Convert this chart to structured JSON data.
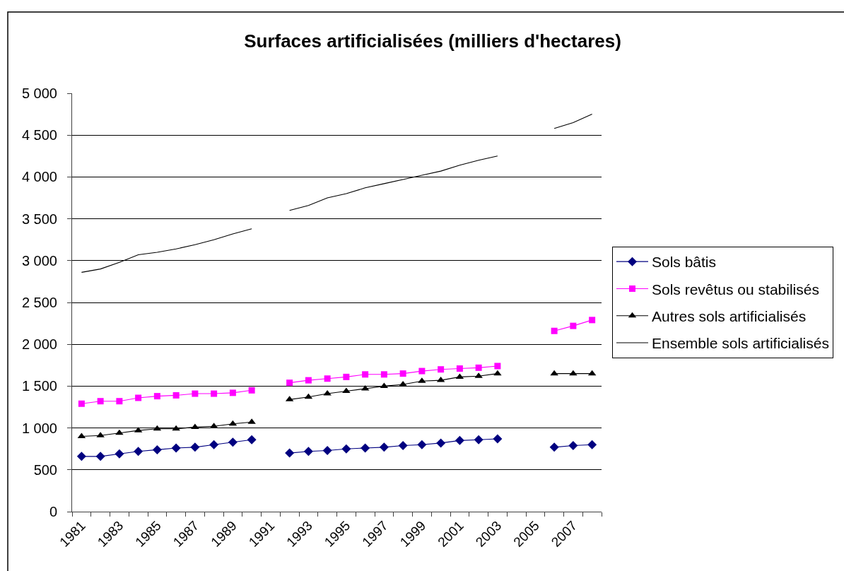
{
  "chart_data": {
    "type": "line",
    "title": "Surfaces artificialisées (milliers d'hectares)",
    "categories": [
      "1981",
      null,
      "1983",
      null,
      "1985",
      null,
      "1987",
      null,
      "1989",
      null,
      "1991",
      null,
      "1993",
      null,
      "1995",
      null,
      "1997",
      null,
      "1999",
      null,
      "2001",
      null,
      "2003",
      null,
      "2005",
      null,
      "2007",
      null
    ],
    "series": [
      {
        "name": "Sols bâtis",
        "color": "#000080",
        "marker": "diamond",
        "values": [
          660,
          660,
          690,
          720,
          740,
          760,
          770,
          800,
          830,
          860,
          null,
          700,
          720,
          730,
          750,
          760,
          770,
          790,
          800,
          820,
          850,
          860,
          870,
          null,
          null,
          770,
          790,
          800
        ]
      },
      {
        "name": "Sols revêtus ou stabilisés",
        "color": "#ff00ff",
        "marker": "square",
        "values": [
          1290,
          1320,
          1320,
          1360,
          1380,
          1390,
          1410,
          1410,
          1420,
          1450,
          null,
          1540,
          1570,
          1590,
          1610,
          1640,
          1640,
          1650,
          1680,
          1700,
          1710,
          1720,
          1740,
          null,
          null,
          2160,
          2220,
          2290
        ]
      },
      {
        "name": "Autres sols artificialisés",
        "color": "#000000",
        "marker": "triangle",
        "values": [
          900,
          910,
          940,
          970,
          990,
          990,
          1010,
          1020,
          1050,
          1070,
          null,
          1340,
          1370,
          1410,
          1440,
          1470,
          1500,
          1520,
          1560,
          1570,
          1610,
          1620,
          1650,
          null,
          null,
          1650,
          1650,
          1650
        ]
      },
      {
        "name": "Ensemble sols artificialisés",
        "color": "#000000",
        "marker": "none",
        "values": [
          2860,
          2900,
          2980,
          3070,
          3100,
          3140,
          3190,
          3250,
          3320,
          3380,
          null,
          3600,
          3660,
          3750,
          3800,
          3870,
          3920,
          3970,
          4020,
          4070,
          4140,
          4200,
          4250,
          null,
          null,
          4580,
          4650,
          4750
        ]
      }
    ],
    "ylim": [
      0,
      5000
    ],
    "yticks": [
      0,
      500,
      {
        "value": 1000,
        "label": "1 000"
      },
      {
        "value": 1500,
        "label": "1 500"
      },
      {
        "value": 2000,
        "label": "2 000"
      },
      {
        "value": 2500,
        "label": "2 500"
      },
      {
        "value": 3000,
        "label": "3 000"
      },
      {
        "value": 3500,
        "label": "3 500"
      },
      {
        "value": 4000,
        "label": "4 000"
      },
      {
        "value": 4500,
        "label": "4 500"
      },
      {
        "value": 5000,
        "label": "5 000"
      }
    ],
    "grid": "y",
    "legend": "right"
  }
}
